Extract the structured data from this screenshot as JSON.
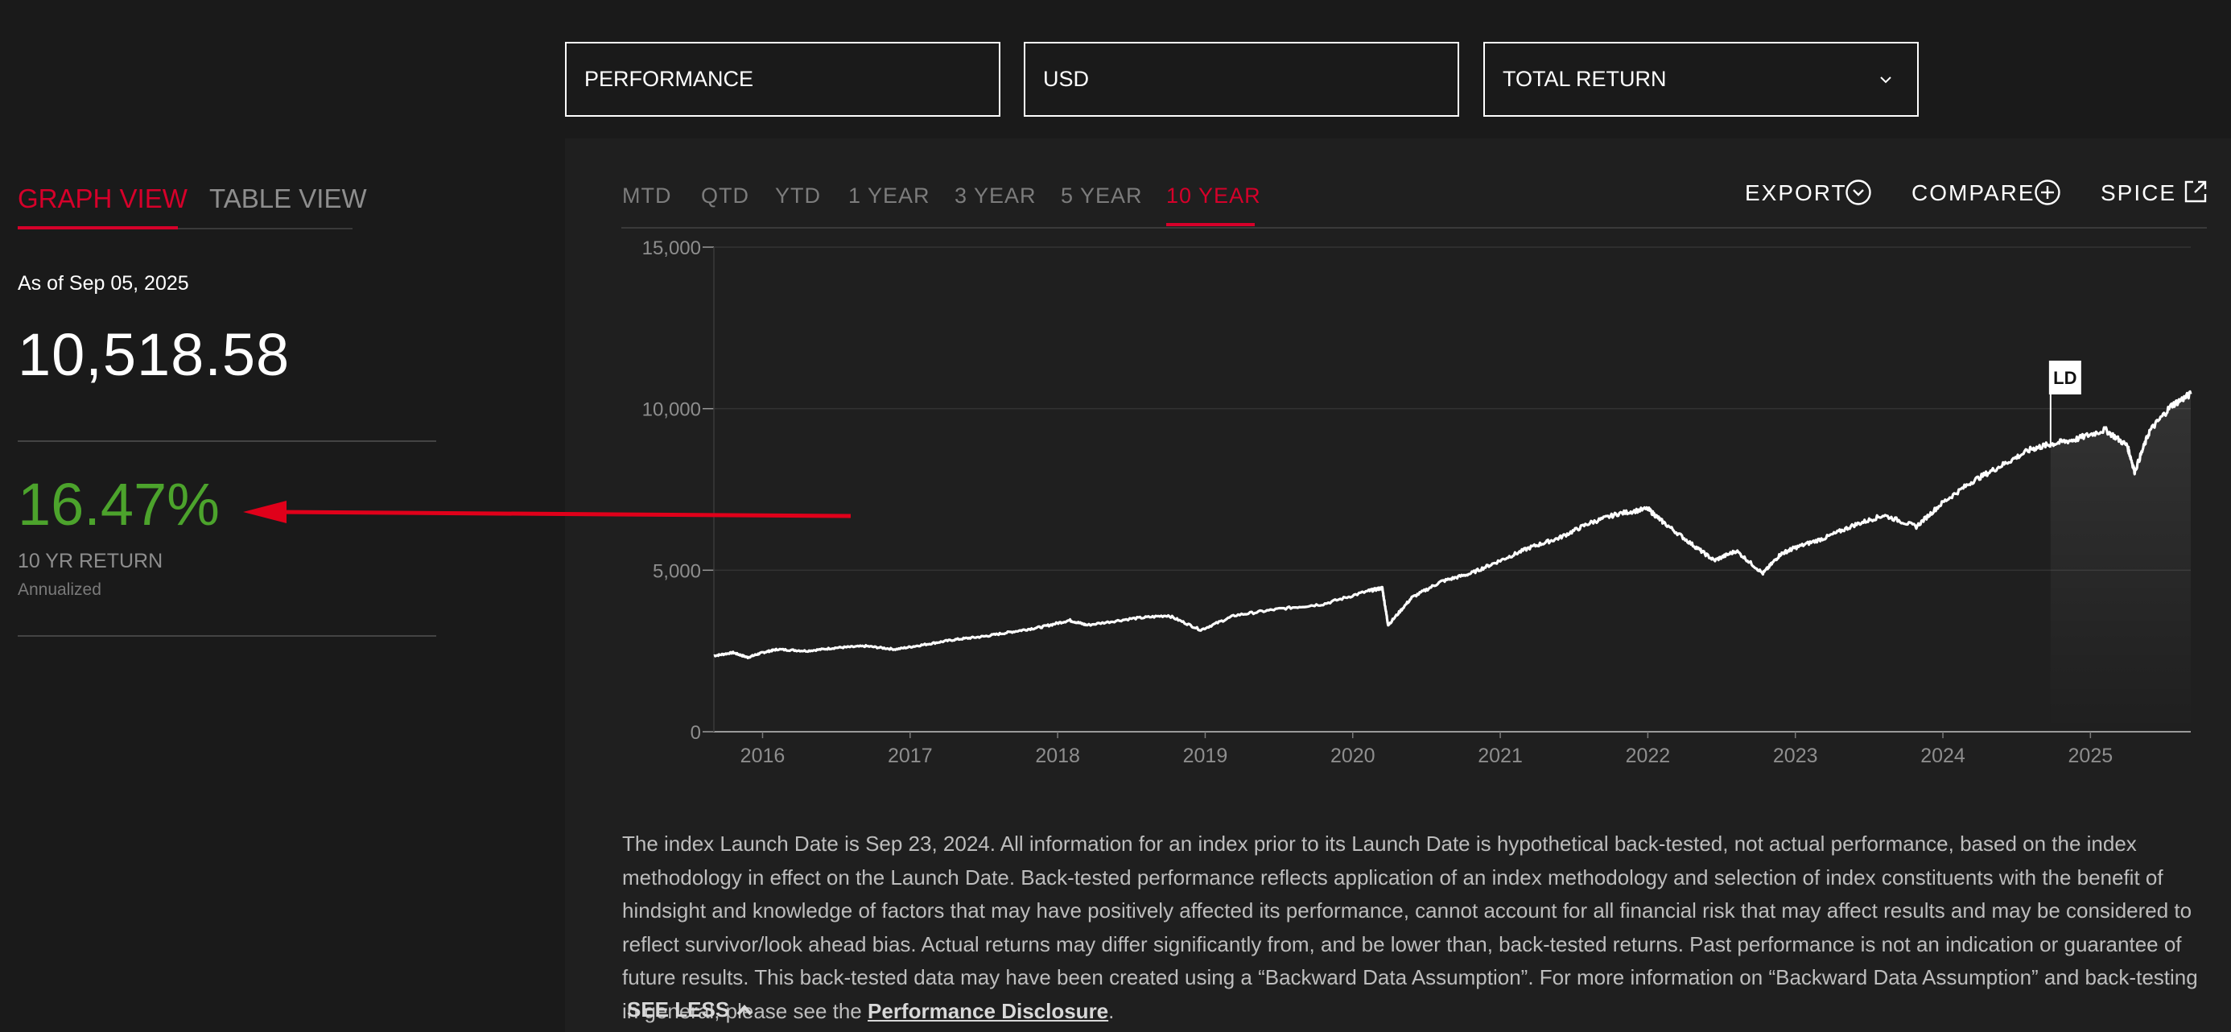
{
  "filters": {
    "view_type": "PERFORMANCE",
    "currency": "USD",
    "return_type": "TOTAL RETURN"
  },
  "views": {
    "graph": "GRAPH VIEW",
    "table": "TABLE VIEW"
  },
  "summary": {
    "as_of": "As of Sep 05, 2025",
    "level": "10,518.58",
    "return_value": "16.47%",
    "return_label": "10 YR RETURN",
    "return_note": "Annualized"
  },
  "periods": [
    "MTD",
    "QTD",
    "YTD",
    "1 YEAR",
    "3 YEAR",
    "5 YEAR",
    "10 YEAR"
  ],
  "active_period": "10 YEAR",
  "actions": {
    "export": "EXPORT",
    "compare": "COMPARE",
    "spice": "SPICE"
  },
  "colors": {
    "accent": "#d6002a",
    "positive": "#4ca32c",
    "line": "#ffffff",
    "bg": "#1a1a1a"
  },
  "chart_data": {
    "type": "line",
    "y_ticks": [
      "15,000",
      "10,000",
      "5,000",
      "0"
    ],
    "ylim": [
      0,
      15000
    ],
    "x_ticks": [
      "2016",
      "2017",
      "2018",
      "2019",
      "2020",
      "2021",
      "2022",
      "2023",
      "2024",
      "2025"
    ],
    "xlim": [
      2015.67,
      2025.68
    ],
    "marker": {
      "label": "LD",
      "x": 2024.73
    },
    "series": [
      {
        "x": [
          2015.67,
          2015.8,
          2015.9,
          2016.0,
          2016.1,
          2016.3,
          2016.5,
          2016.7,
          2016.9,
          2017.1,
          2017.3,
          2017.5,
          2017.7,
          2017.9,
          2018.08,
          2018.2,
          2018.5,
          2018.75,
          2018.97,
          2019.2,
          2019.5,
          2019.8,
          2020.1,
          2020.2,
          2020.24,
          2020.4,
          2020.6,
          2020.8,
          2021.0,
          2021.2,
          2021.4,
          2021.6,
          2021.8,
          2022.0,
          2022.1,
          2022.3,
          2022.45,
          2022.6,
          2022.78,
          2022.9,
          2023.0,
          2023.2,
          2023.4,
          2023.6,
          2023.82,
          2024.0,
          2024.2,
          2024.4,
          2024.6,
          2024.73,
          2024.9,
          2025.1,
          2025.25,
          2025.3,
          2025.4,
          2025.55,
          2025.68
        ],
        "y": [
          2350,
          2450,
          2300,
          2450,
          2550,
          2500,
          2600,
          2650,
          2550,
          2700,
          2850,
          2950,
          3100,
          3250,
          3450,
          3300,
          3500,
          3600,
          3150,
          3600,
          3800,
          3950,
          4350,
          4450,
          3300,
          4150,
          4650,
          4900,
          5300,
          5700,
          6000,
          6450,
          6750,
          6900,
          6500,
          5800,
          5300,
          5600,
          4900,
          5500,
          5700,
          6000,
          6400,
          6700,
          6350,
          7100,
          7750,
          8250,
          8750,
          8900,
          9050,
          9350,
          8850,
          8050,
          9300,
          10100,
          10450
        ]
      }
    ]
  },
  "disclaimer": {
    "text": "The index Launch Date is Sep 23, 2024. All information for an index prior to its Launch Date is hypothetical back-tested, not actual performance, based on the index methodology in effect on the Launch Date. Back-tested performance reflects application of an index methodology and selection of index constituents with the benefit of hindsight and knowledge of factors that may have positively affected its performance, cannot account for all financial risk that may affect results and may be considered to reflect survivor/look ahead bias. Actual returns may differ significantly from, and be lower than, back-tested returns. Past performance is not an indication or guarantee of future results. This back-tested data may have been created using a “Backward Data Assumption”. For more information on “Backward Data Assumption” and back-testing in general, please see the",
    "link": "Performance Disclosure",
    "suffix": ".",
    "toggle": "SEE LESS"
  }
}
